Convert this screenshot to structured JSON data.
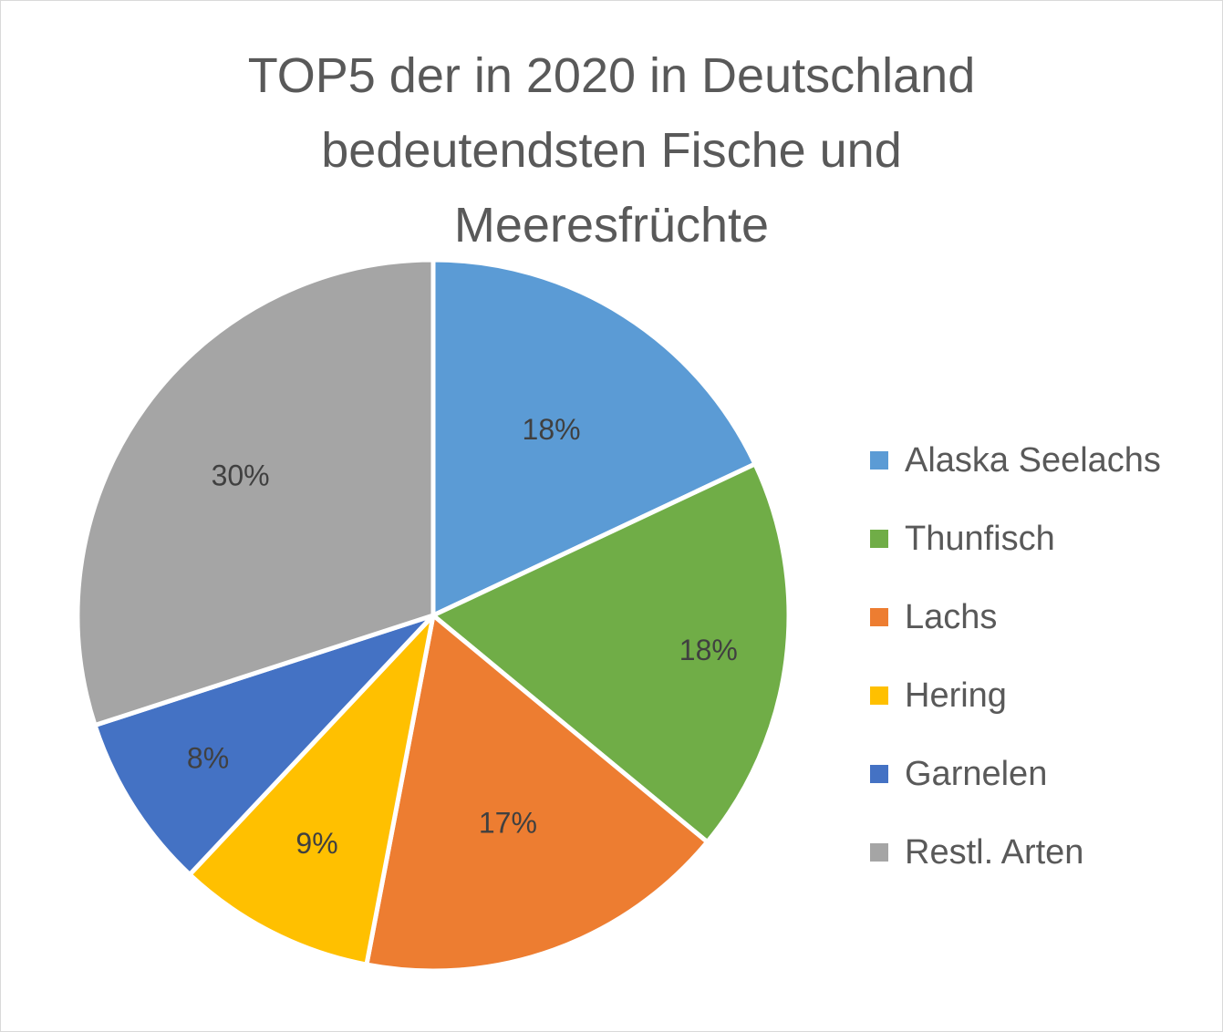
{
  "chart_data": {
    "type": "pie",
    "title": "TOP5 der in 2020 in Deutschland bedeutendsten Fische und Meeresfrüchte",
    "title_lines": [
      "TOP5 der in 2020 in Deutschland",
      "bedeutendsten Fische und",
      "Meeresfrüchte"
    ],
    "categories": [
      "Alaska Seelachs",
      "Thunfisch",
      "Lachs",
      "Hering",
      "Garnelen",
      "Restl. Arten"
    ],
    "values": [
      18,
      18,
      17,
      9,
      8,
      30
    ],
    "labels": [
      "18%",
      "18%",
      "17%",
      "9%",
      "8%",
      "30%"
    ],
    "colors": [
      "#5b9bd5",
      "#70ad47",
      "#ed7d31",
      "#ffc000",
      "#4472c4",
      "#a5a5a5"
    ],
    "unit": "%",
    "start_angle": "12 o'clock, clockwise",
    "legend_position": "right"
  }
}
